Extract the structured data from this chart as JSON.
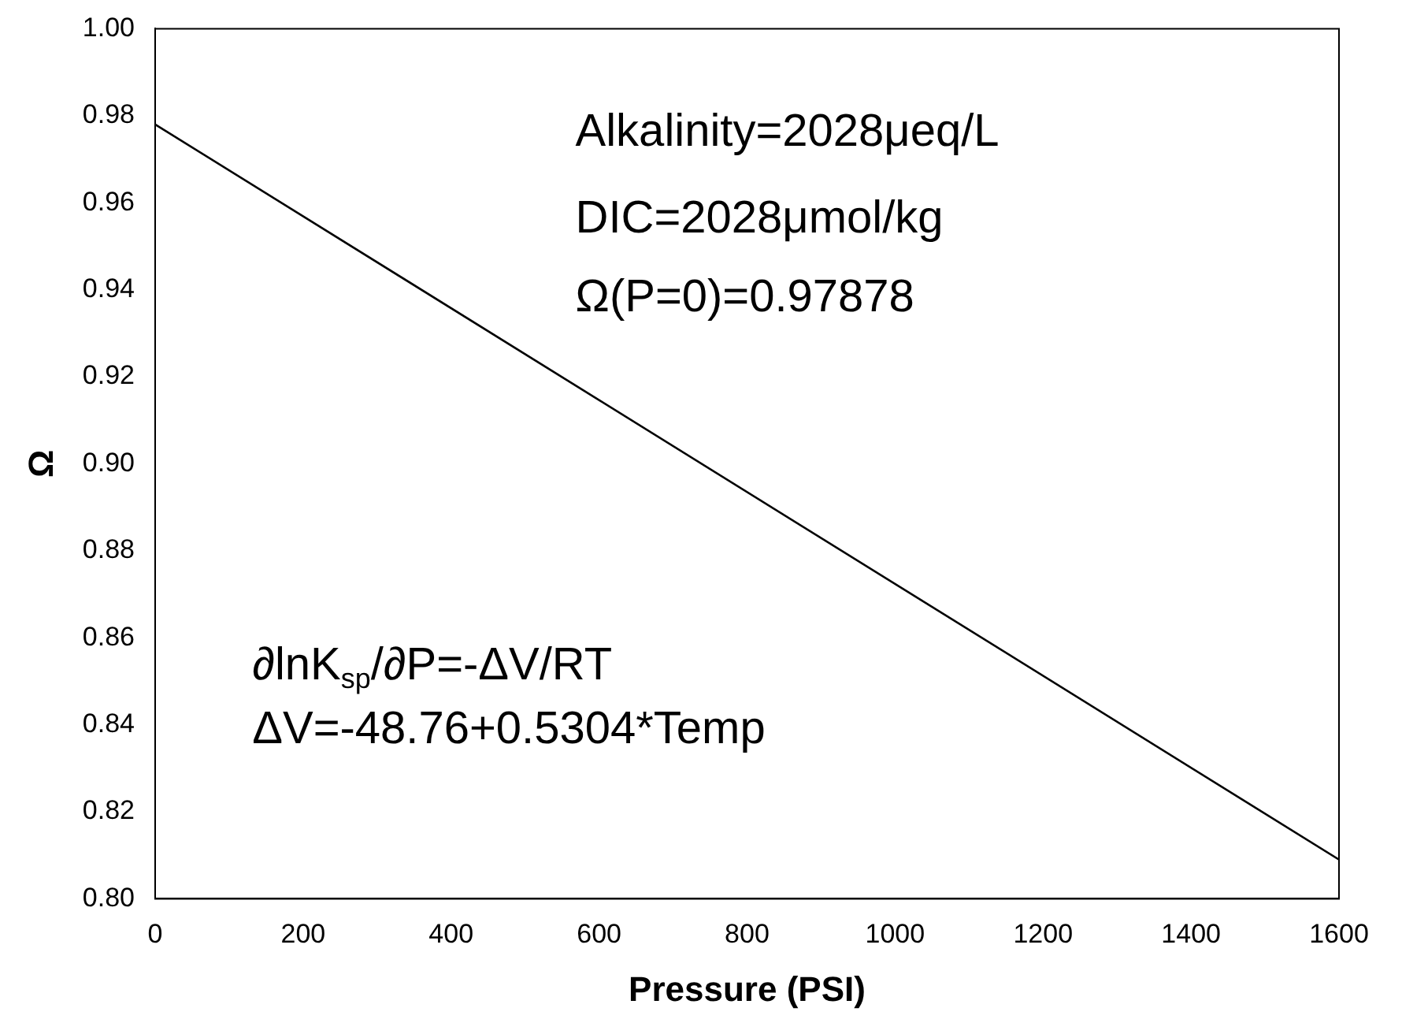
{
  "chart_data": {
    "type": "line",
    "xlabel": "Pressure (PSI)",
    "ylabel": "Ω",
    "series": [
      {
        "color": "#000000",
        "x": [
          0,
          1600
        ],
        "values": [
          0.978,
          0.809
        ]
      }
    ],
    "xlim": [
      0,
      1600
    ],
    "xticks": [
      0,
      200,
      400,
      600,
      800,
      1000,
      1200,
      1400,
      1600
    ],
    "ylim": [
      0.8,
      1.0
    ],
    "yticks": [
      {
        "value": 0.8,
        "label": "0.80"
      },
      {
        "value": 0.82,
        "label": "0.82"
      },
      {
        "value": 0.84,
        "label": "0.84"
      },
      {
        "value": 0.86,
        "label": "0.86"
      },
      {
        "value": 0.88,
        "label": "0.88"
      },
      {
        "value": 0.9,
        "label": "0.90"
      },
      {
        "value": 0.92,
        "label": "0.92"
      },
      {
        "value": 0.94,
        "label": "0.94"
      },
      {
        "value": 0.96,
        "label": "0.96"
      },
      {
        "value": 0.98,
        "label": "0.98"
      },
      {
        "value": 1.0,
        "label": "1.00"
      }
    ],
    "grid": false,
    "legend": false,
    "marker": "none",
    "line_style": "solid",
    "annotations": [
      "Alkalinity=2028μeq/L",
      "DIC=2028μmol/kg",
      "Ω(P=0)=0.97878",
      "∂lnK$_{sp}$/∂P=-ΔV/RT",
      "ΔV=-48.76+0.5304*Temp"
    ]
  }
}
